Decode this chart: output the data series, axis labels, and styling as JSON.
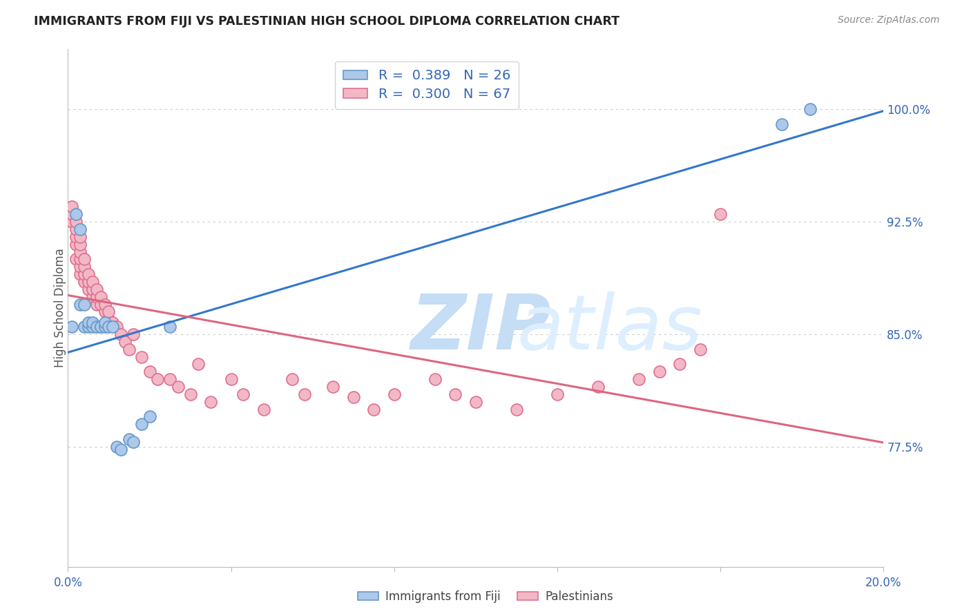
{
  "title": "IMMIGRANTS FROM FIJI VS PALESTINIAN HIGH SCHOOL DIPLOMA CORRELATION CHART",
  "source": "Source: ZipAtlas.com",
  "ylabel": "High School Diploma",
  "ytick_labels": [
    "100.0%",
    "92.5%",
    "85.0%",
    "77.5%"
  ],
  "ytick_values": [
    1.0,
    0.925,
    0.85,
    0.775
  ],
  "xmin": 0.0,
  "xmax": 0.2,
  "ymin": 0.695,
  "ymax": 1.04,
  "fiji_color": "#adc8e8",
  "fiji_edge_color": "#6699cc",
  "pal_color": "#f2b8c6",
  "pal_edge_color": "#e07090",
  "line_fiji_color": "#3377cc",
  "line_pal_color": "#dd6680",
  "watermark_zip_color": "#cce0f5",
  "watermark_atlas_color": "#ddeeff",
  "fiji_x": [
    0.001,
    0.002,
    0.003,
    0.003,
    0.004,
    0.004,
    0.005,
    0.005,
    0.006,
    0.006,
    0.007,
    0.008,
    0.008,
    0.009,
    0.009,
    0.01,
    0.011,
    0.012,
    0.013,
    0.015,
    0.016,
    0.018,
    0.02,
    0.025,
    0.175,
    0.182
  ],
  "fiji_y": [
    0.855,
    0.93,
    0.87,
    0.92,
    0.855,
    0.87,
    0.855,
    0.858,
    0.855,
    0.858,
    0.855,
    0.855,
    0.855,
    0.855,
    0.858,
    0.855,
    0.855,
    0.775,
    0.773,
    0.78,
    0.778,
    0.79,
    0.795,
    0.855,
    0.99,
    1.0
  ],
  "pal_x": [
    0.001,
    0.001,
    0.001,
    0.002,
    0.002,
    0.002,
    0.002,
    0.002,
    0.003,
    0.003,
    0.003,
    0.003,
    0.003,
    0.003,
    0.004,
    0.004,
    0.004,
    0.004,
    0.005,
    0.005,
    0.005,
    0.006,
    0.006,
    0.006,
    0.007,
    0.007,
    0.007,
    0.008,
    0.008,
    0.009,
    0.009,
    0.01,
    0.01,
    0.011,
    0.012,
    0.013,
    0.014,
    0.015,
    0.016,
    0.018,
    0.02,
    0.022,
    0.025,
    0.027,
    0.03,
    0.032,
    0.035,
    0.04,
    0.043,
    0.048,
    0.055,
    0.058,
    0.065,
    0.07,
    0.075,
    0.08,
    0.09,
    0.095,
    0.1,
    0.11,
    0.12,
    0.13,
    0.14,
    0.145,
    0.15,
    0.155,
    0.16
  ],
  "pal_y": [
    0.925,
    0.93,
    0.935,
    0.9,
    0.91,
    0.915,
    0.92,
    0.925,
    0.89,
    0.895,
    0.9,
    0.905,
    0.91,
    0.915,
    0.885,
    0.89,
    0.895,
    0.9,
    0.88,
    0.885,
    0.89,
    0.875,
    0.88,
    0.885,
    0.87,
    0.875,
    0.88,
    0.87,
    0.875,
    0.865,
    0.87,
    0.86,
    0.865,
    0.858,
    0.855,
    0.85,
    0.845,
    0.84,
    0.85,
    0.835,
    0.825,
    0.82,
    0.82,
    0.815,
    0.81,
    0.83,
    0.805,
    0.82,
    0.81,
    0.8,
    0.82,
    0.81,
    0.815,
    0.808,
    0.8,
    0.81,
    0.82,
    0.81,
    0.805,
    0.8,
    0.81,
    0.815,
    0.82,
    0.825,
    0.83,
    0.84,
    0.93
  ]
}
